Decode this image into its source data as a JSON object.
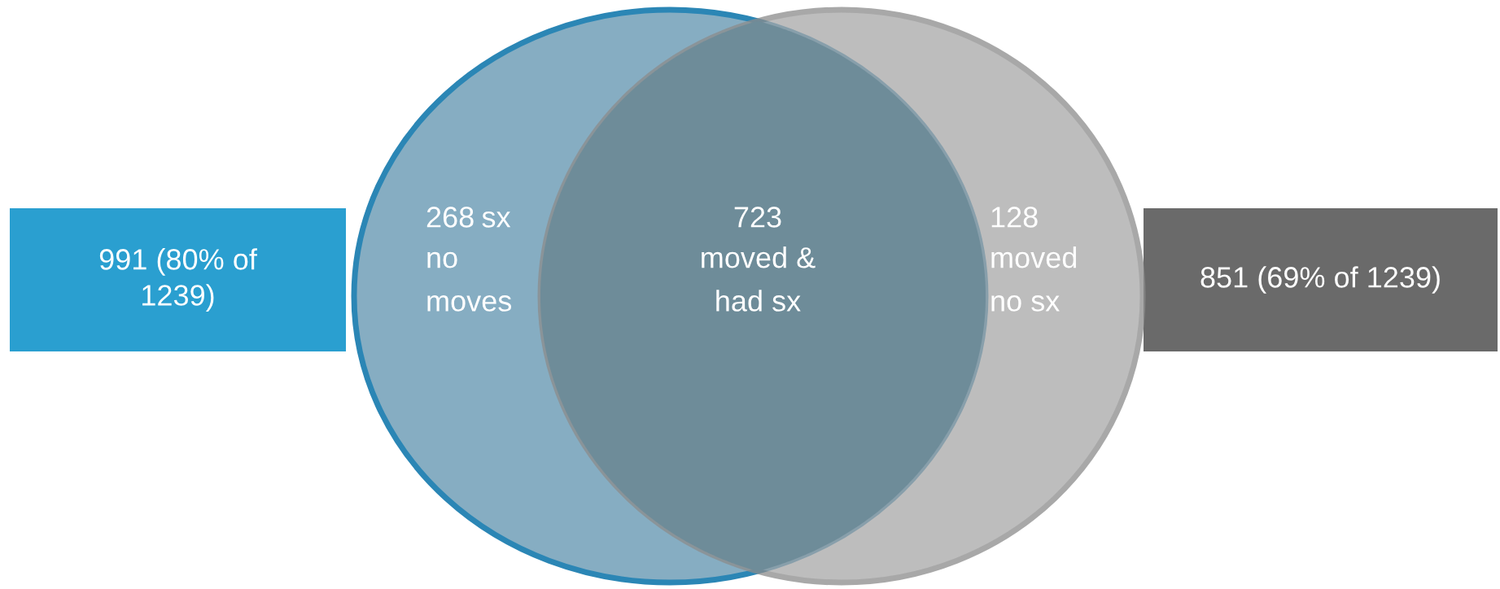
{
  "chart_data": {
    "type": "other",
    "categories": [
      "sx\nno\nmoves",
      "\nmoved &\nhad sx",
      "\nmoved\nno sx"
    ],
    "values": [
      268,
      723,
      128
    ],
    "data_labels": true,
    "colors": [
      "#86adc2",
      "#6e8c99",
      "#a8a8a8"
    ],
    "annotations": [
      "991 (80% of\n1239)",
      "851 (69% of 1239)"
    ]
  }
}
